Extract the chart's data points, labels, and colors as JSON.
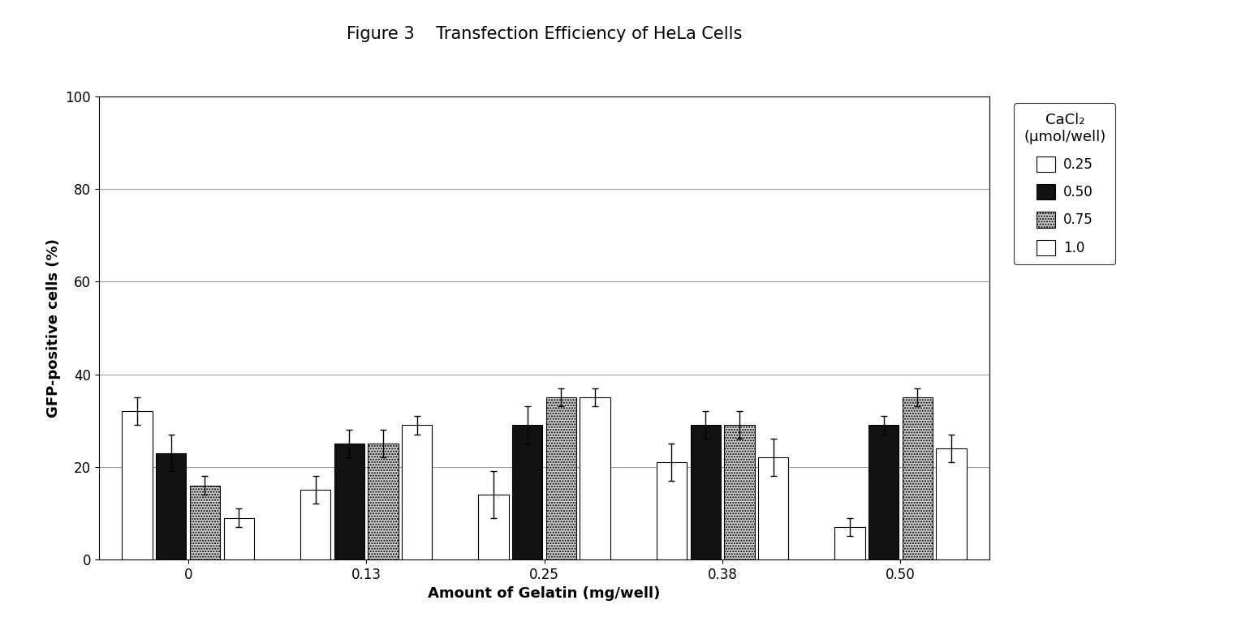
{
  "title": "Figure 3    Transfection Efficiency of HeLa Cells",
  "xlabel": "Amount of Gelatin (mg/well)",
  "ylabel": "GFP-positive cells (%)",
  "legend_title": "CaCl₂\n(μmol/well)",
  "legend_labels": [
    "0.25",
    "0.50",
    "0.75",
    "1.0"
  ],
  "bar_colors": [
    "#ffffff",
    "#111111",
    "#cccccc",
    "#ffffff"
  ],
  "bar_edge_colors": [
    "#000000",
    "#000000",
    "#000000",
    "#000000"
  ],
  "bar_hatches": [
    null,
    null,
    ".....",
    null
  ],
  "categories": [
    "0",
    "0.13",
    "0.25",
    "0.38",
    "0.50"
  ],
  "values": [
    [
      32,
      23,
      16,
      9
    ],
    [
      15,
      25,
      25,
      29
    ],
    [
      14,
      29,
      35,
      35
    ],
    [
      21,
      29,
      29,
      22
    ],
    [
      7,
      29,
      35,
      24
    ]
  ],
  "errors": [
    [
      3,
      4,
      2,
      2
    ],
    [
      3,
      3,
      3,
      2
    ],
    [
      5,
      4,
      2,
      2
    ],
    [
      4,
      3,
      3,
      4
    ],
    [
      2,
      2,
      2,
      3
    ]
  ],
  "ylim": [
    0,
    100
  ],
  "yticks": [
    0,
    20,
    40,
    60,
    80,
    100
  ],
  "background_color": "#ffffff",
  "grid_color": "#888888",
  "title_fontsize": 15,
  "axis_fontsize": 13,
  "tick_fontsize": 12,
  "legend_fontsize": 12,
  "legend_title_fontsize": 13
}
